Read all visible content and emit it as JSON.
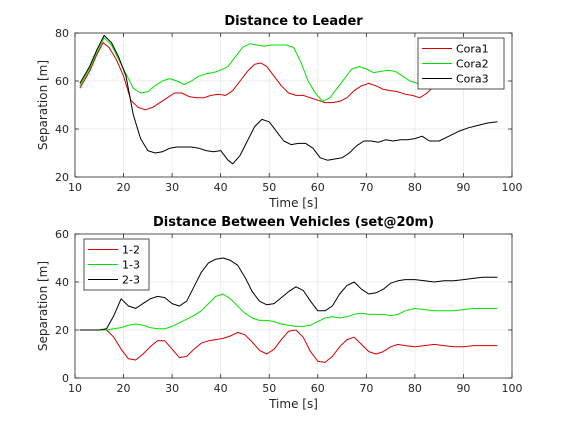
{
  "chart_data": [
    {
      "type": "line",
      "title": "Distance to Leader",
      "xlabel": "Time [s]",
      "ylabel": "Separation [m]",
      "xlim": [
        10,
        100
      ],
      "ylim": [
        20,
        80
      ],
      "xticks": [
        10,
        20,
        30,
        40,
        50,
        60,
        70,
        80,
        90,
        100
      ],
      "yticks": [
        20,
        40,
        60,
        80
      ],
      "grid": true,
      "legend_position": "top-right",
      "series": [
        {
          "name": "Cora1",
          "color": "#d40000",
          "x": [
            11,
            13,
            14.5,
            15.8,
            17,
            18.5,
            20,
            21.5,
            23,
            24.5,
            26,
            27.5,
            29,
            30.5,
            32,
            33.5,
            35,
            36.5,
            38,
            39.5,
            41,
            42.5,
            44,
            45.5,
            47,
            48.3,
            49.5,
            51,
            52.5,
            54,
            55.5,
            57,
            58.5,
            60,
            61.5,
            63,
            64.5,
            66,
            67.5,
            69,
            70.5,
            72,
            73.5,
            75,
            76.5,
            78,
            79.5,
            81,
            82.5,
            84
          ],
          "y": [
            57,
            64,
            71,
            76,
            74,
            69,
            62,
            52,
            49,
            48,
            49,
            51,
            53,
            55,
            55,
            53.5,
            53,
            53,
            54,
            54.5,
            54,
            56,
            60,
            64,
            67,
            67.5,
            66,
            62,
            58,
            55,
            54,
            54,
            53,
            52,
            51,
            51,
            51.5,
            53,
            56,
            58,
            59,
            58,
            56.5,
            56,
            55.5,
            54.5,
            54,
            53,
            55,
            58
          ]
        },
        {
          "name": "Cora2",
          "color": "#00e000",
          "x": [
            11,
            13,
            14.5,
            16,
            17.5,
            19,
            20.5,
            22,
            23.5,
            25,
            26.5,
            28,
            29.5,
            31,
            32.5,
            34,
            35.5,
            37,
            38.5,
            40,
            41.5,
            43,
            44.5,
            46,
            47.5,
            49,
            50.5,
            52,
            53.5,
            55,
            56.5,
            58,
            59.5,
            61,
            62.5,
            64,
            65.5,
            67,
            68.5,
            70,
            71.5,
            73,
            74.5,
            76,
            77.5,
            79,
            80.5,
            82,
            83.5,
            84.5
          ],
          "y": [
            58,
            65,
            72,
            78,
            75,
            69,
            63,
            57,
            55,
            55.5,
            58,
            60,
            61,
            60,
            58.5,
            60,
            62,
            63,
            63.5,
            64.5,
            66,
            70,
            74,
            75.5,
            75,
            74.5,
            75,
            75,
            75,
            74,
            68,
            60,
            55,
            51.5,
            53,
            57,
            61,
            65,
            66,
            65,
            63.5,
            64,
            64.5,
            64,
            62,
            60,
            59,
            58.5,
            58.5,
            58.5
          ]
        },
        {
          "name": "Cora3",
          "color": "#000000",
          "x": [
            11,
            13,
            14.5,
            16,
            17.5,
            19,
            20.5,
            22,
            23.5,
            25,
            26.5,
            28,
            29.5,
            31,
            32.5,
            34,
            35.5,
            37,
            38.5,
            40,
            41.5,
            42.5,
            44,
            45.5,
            47,
            48.5,
            50,
            51.5,
            53,
            54.5,
            56,
            57.5,
            59,
            60.5,
            62,
            63.5,
            65,
            66.5,
            68,
            69.5,
            71,
            72.5,
            74,
            75.5,
            77,
            78.5,
            80,
            81.5,
            83,
            85,
            87,
            89,
            91,
            93,
            95,
            97
          ],
          "y": [
            59,
            66,
            73,
            79,
            76,
            70,
            62,
            46,
            36,
            31,
            30,
            30.5,
            32,
            32.5,
            32.5,
            32.5,
            32,
            31,
            30.5,
            31,
            27,
            25.5,
            29,
            35,
            41,
            44,
            43,
            39,
            35,
            33.5,
            34,
            34,
            32,
            28,
            27,
            27.5,
            28,
            30,
            33,
            35,
            35,
            34.5,
            35.5,
            35,
            35.5,
            35.5,
            36,
            37,
            35,
            35,
            37,
            39,
            40.5,
            41.5,
            42.5,
            43
          ]
        }
      ]
    },
    {
      "type": "line",
      "title": "Distance Between Vehicles (set@20m)",
      "xlabel": "Time [s]",
      "ylabel": "Separation [m]",
      "xlim": [
        10,
        100
      ],
      "ylim": [
        0,
        60
      ],
      "xticks": [
        10,
        20,
        30,
        40,
        50,
        60,
        70,
        80,
        90,
        100
      ],
      "yticks": [
        0,
        20,
        40,
        60
      ],
      "grid": true,
      "legend_position": "top-left",
      "series": [
        {
          "name": "1-2",
          "color": "#d40000",
          "x": [
            11,
            13,
            15,
            16.5,
            18,
            19.5,
            21,
            22.5,
            24,
            25.5,
            27,
            28.5,
            30,
            31.5,
            33,
            34.5,
            36,
            37.5,
            39,
            40.5,
            42,
            43.5,
            45,
            46.5,
            48,
            49.5,
            51,
            52.5,
            54,
            55.5,
            57,
            58.5,
            60,
            61.5,
            63,
            64.5,
            66,
            67.5,
            69,
            70.5,
            72,
            73.5,
            75,
            76.5,
            78,
            80,
            82,
            84,
            86,
            88,
            90,
            92,
            94,
            97
          ],
          "y": [
            20,
            20,
            20,
            20,
            17,
            12,
            8,
            7.5,
            10,
            13,
            15.5,
            15.5,
            12,
            8.5,
            9,
            12,
            14.5,
            15.5,
            16,
            16.5,
            17.5,
            19,
            18,
            15,
            11.5,
            10,
            12,
            16,
            19.5,
            20,
            17,
            11,
            7,
            6.5,
            9,
            13,
            16,
            17,
            14,
            11,
            10,
            11,
            13,
            14,
            13.5,
            13,
            13.5,
            14,
            13.5,
            13,
            13,
            13.5,
            13.5,
            13.5
          ]
        },
        {
          "name": "1-3",
          "color": "#00e000",
          "x": [
            11,
            13,
            15,
            16.5,
            18,
            19.5,
            21,
            22.5,
            24,
            25.5,
            27,
            28.5,
            30,
            31.5,
            33,
            34.5,
            36,
            37.5,
            39,
            40.5,
            42,
            43.5,
            45,
            46.5,
            48,
            49.5,
            51,
            52.5,
            54,
            55.5,
            57,
            58.5,
            60,
            61.5,
            63,
            64.5,
            66,
            67.5,
            69,
            70.5,
            72,
            73.5,
            75,
            76.5,
            78,
            80,
            82,
            84,
            86,
            88,
            90,
            92,
            94,
            97
          ],
          "y": [
            20,
            20,
            20,
            20,
            20.5,
            21,
            22,
            22.5,
            22,
            21,
            20.5,
            20.5,
            21.5,
            23,
            24.5,
            26,
            28,
            31,
            34,
            35,
            33,
            30,
            27,
            25,
            24,
            24,
            23.5,
            22.5,
            22,
            21.5,
            21.5,
            22,
            23.5,
            25,
            25.5,
            25,
            25.5,
            26.5,
            27,
            26.5,
            26.5,
            26.5,
            26,
            26.5,
            28,
            29,
            28.5,
            28,
            28,
            28,
            28.5,
            29,
            29,
            29
          ]
        },
        {
          "name": "2-3",
          "color": "#000000",
          "x": [
            11,
            13,
            15,
            16.5,
            18,
            19.5,
            21,
            22.5,
            24,
            25.5,
            27,
            28.5,
            30,
            31.5,
            33,
            34.5,
            36,
            37.5,
            39,
            40.5,
            42,
            43.5,
            45,
            46.5,
            48,
            49.5,
            51,
            52.5,
            54,
            55.5,
            57,
            58.5,
            60,
            61.5,
            63,
            64.5,
            66,
            67.5,
            69,
            70.5,
            72,
            73.5,
            75,
            76.5,
            78,
            80,
            82,
            84,
            86,
            88,
            90,
            92,
            94,
            97
          ],
          "y": [
            20,
            20,
            20,
            20.5,
            26,
            33,
            30,
            29,
            31,
            33,
            34,
            33.5,
            31,
            30,
            32,
            38,
            44,
            48,
            49.5,
            50,
            49,
            47,
            42,
            36,
            32,
            30.5,
            31,
            33.5,
            36,
            38,
            36.5,
            32,
            28,
            28,
            30,
            35,
            38.5,
            40,
            37,
            35,
            35.5,
            37,
            39.5,
            40.5,
            41,
            41,
            40.5,
            40,
            40.5,
            40.5,
            41,
            41.5,
            42,
            42
          ]
        }
      ]
    }
  ]
}
